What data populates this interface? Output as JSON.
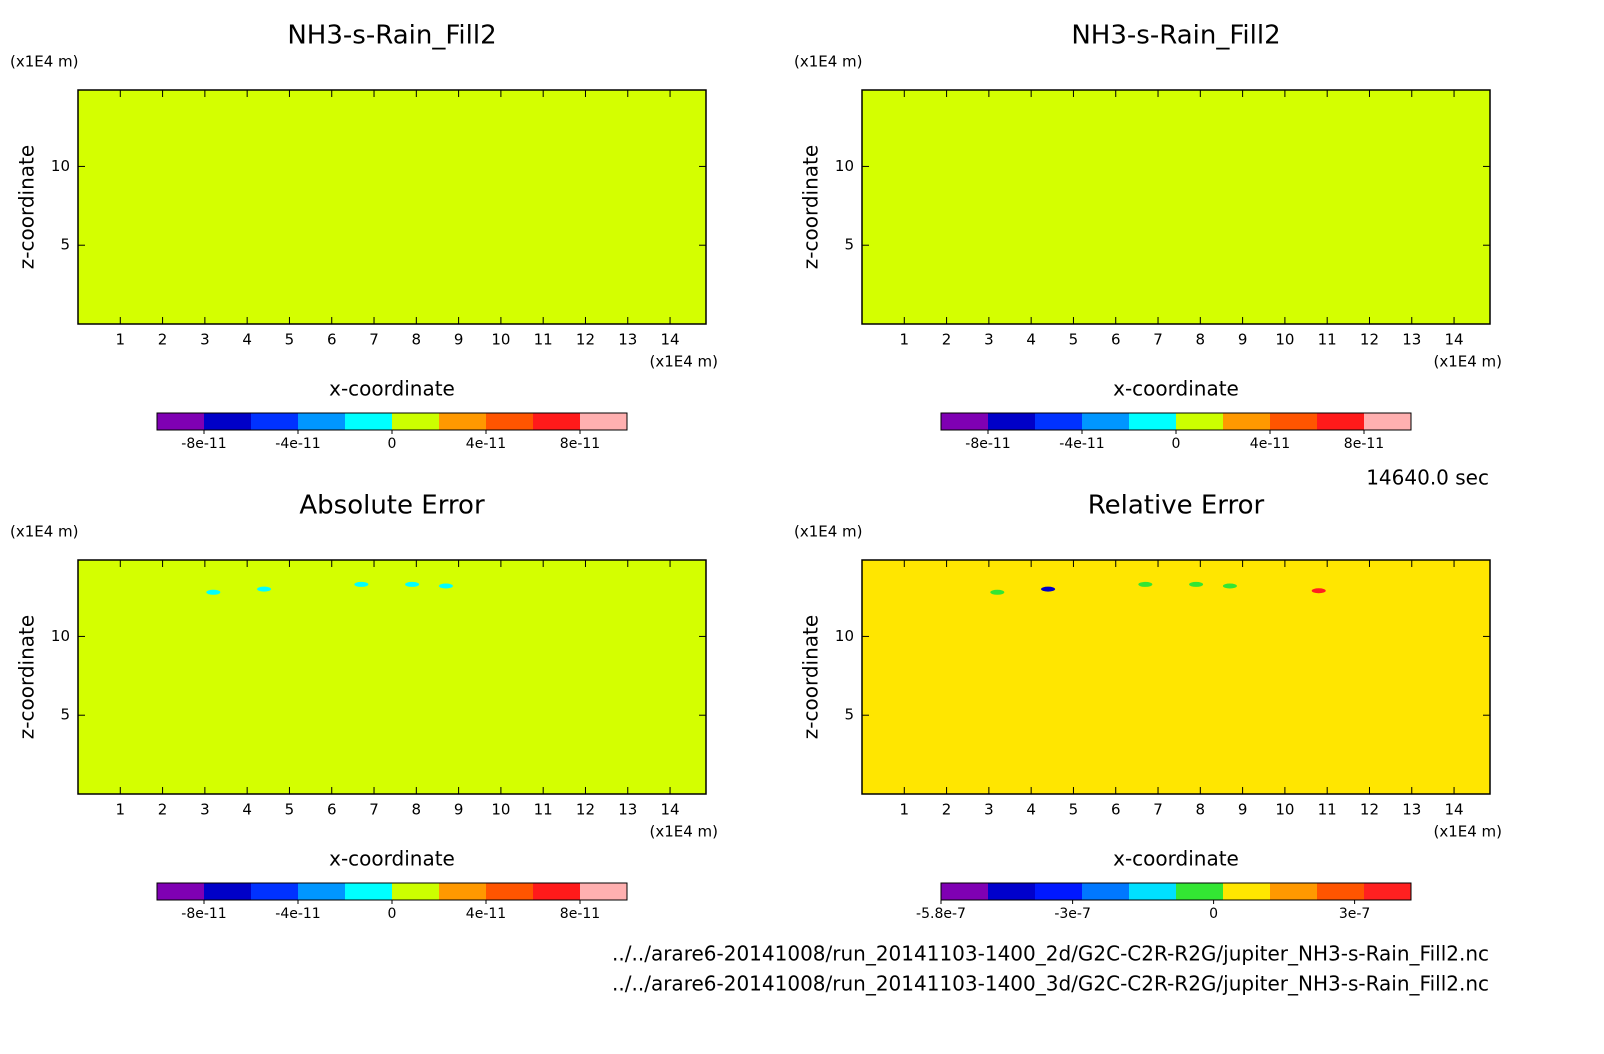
{
  "chart_data": [
    {
      "type": "contour",
      "title": "NH3-s-Rain_Fill2",
      "xlabel": "x-coordinate",
      "ylabel": "z-coordinate",
      "xunit": "(x1E4 m)",
      "yunit": "(x1E4 m)",
      "xlim": [
        0,
        14.85
      ],
      "ylim": [
        0,
        14.85
      ],
      "xticks": [
        1,
        2,
        3,
        4,
        5,
        6,
        7,
        8,
        9,
        10,
        11,
        12,
        13,
        14
      ],
      "yticks": [
        5,
        10
      ],
      "fill": "#d4ff00",
      "contours": [],
      "colorbar": {
        "colors": [
          "#7f00b3",
          "#0000c8",
          "#0032ff",
          "#0096ff",
          "#00ffff",
          "#ccff00",
          "#ff9900",
          "#ff5500",
          "#ff1a1a",
          "#ffb0b0"
        ],
        "lim": [
          -1e-10,
          1e-10
        ],
        "ticks": [
          -8e-11,
          -4e-11,
          0,
          4e-11,
          8e-11
        ]
      }
    },
    {
      "type": "contour",
      "title": "NH3-s-Rain_Fill2",
      "xlabel": "x-coordinate",
      "ylabel": "z-coordinate",
      "xunit": "(x1E4 m)",
      "yunit": "(x1E4 m)",
      "xlim": [
        0,
        14.85
      ],
      "ylim": [
        0,
        14.85
      ],
      "xticks": [
        1,
        2,
        3,
        4,
        5,
        6,
        7,
        8,
        9,
        10,
        11,
        12,
        13,
        14
      ],
      "yticks": [
        5,
        10
      ],
      "fill": "#d4ff00",
      "contours": [],
      "colorbar": {
        "colors": [
          "#7f00b3",
          "#0000c8",
          "#0032ff",
          "#0096ff",
          "#00ffff",
          "#ccff00",
          "#ff9900",
          "#ff5500",
          "#ff1a1a",
          "#ffb0b0"
        ],
        "lim": [
          -1e-10,
          1e-10
        ],
        "ticks": [
          -8e-11,
          -4e-11,
          0,
          4e-11,
          8e-11
        ]
      }
    },
    {
      "type": "contour",
      "title": "Absolute Error",
      "xlabel": "x-coordinate",
      "ylabel": "z-coordinate",
      "xunit": "(x1E4 m)",
      "yunit": "(x1E4 m)",
      "xlim": [
        0,
        14.85
      ],
      "ylim": [
        0,
        14.85
      ],
      "xticks": [
        1,
        2,
        3,
        4,
        5,
        6,
        7,
        8,
        9,
        10,
        11,
        12,
        13,
        14
      ],
      "yticks": [
        5,
        10
      ],
      "fill": "#d4ff00",
      "contours": [
        {
          "x": 3.2,
          "z": 12.8,
          "color": "#00ffff"
        },
        {
          "x": 4.4,
          "z": 13.0,
          "color": "#00ffff"
        },
        {
          "x": 6.7,
          "z": 13.3,
          "color": "#00ffff"
        },
        {
          "x": 7.9,
          "z": 13.3,
          "color": "#00ffff"
        },
        {
          "x": 8.7,
          "z": 13.2,
          "color": "#00ffff"
        }
      ],
      "colorbar": {
        "colors": [
          "#7f00b3",
          "#0000c8",
          "#0032ff",
          "#0096ff",
          "#00ffff",
          "#ccff00",
          "#ff9900",
          "#ff5500",
          "#ff1a1a",
          "#ffb0b0"
        ],
        "lim": [
          -1e-10,
          1e-10
        ],
        "ticks": [
          -8e-11,
          -4e-11,
          0,
          4e-11,
          8e-11
        ]
      }
    },
    {
      "type": "contour",
      "title": "Relative Error",
      "xlabel": "x-coordinate",
      "ylabel": "z-coordinate",
      "xunit": "(x1E4 m)",
      "yunit": "(x1E4 m)",
      "xlim": [
        0,
        14.85
      ],
      "ylim": [
        0,
        14.85
      ],
      "xticks": [
        1,
        2,
        3,
        4,
        5,
        6,
        7,
        8,
        9,
        10,
        11,
        12,
        13,
        14
      ],
      "yticks": [
        5,
        10
      ],
      "fill": "#ffe600",
      "contours": [
        {
          "x": 3.2,
          "z": 12.8,
          "color": "#33e633"
        },
        {
          "x": 4.4,
          "z": 13.0,
          "color": "#0000c8"
        },
        {
          "x": 6.7,
          "z": 13.3,
          "color": "#33e633"
        },
        {
          "x": 7.9,
          "z": 13.3,
          "color": "#33e633"
        },
        {
          "x": 8.7,
          "z": 13.2,
          "color": "#33e633"
        },
        {
          "x": 10.8,
          "z": 12.9,
          "color": "#ff2020"
        }
      ],
      "colorbar": {
        "colors": [
          "#7f00b3",
          "#0000cc",
          "#0018ff",
          "#0078ff",
          "#00e0ff",
          "#33e633",
          "#ffe600",
          "#ff9900",
          "#ff5500",
          "#ff2020"
        ],
        "lim": [
          -5.8e-07,
          4.2e-07
        ],
        "ticks": [
          -5.8e-07,
          -3e-07,
          0,
          3e-07
        ]
      }
    }
  ],
  "footer": {
    "time": "14640.0 sec",
    "files": [
      "../../arare6-20141008/run_20141103-1400_2d/G2C-C2R-R2G/jupiter_NH3-s-Rain_Fill2.nc",
      "../../arare6-20141008/run_20141103-1400_3d/G2C-C2R-R2G/jupiter_NH3-s-Rain_Fill2.nc"
    ]
  }
}
